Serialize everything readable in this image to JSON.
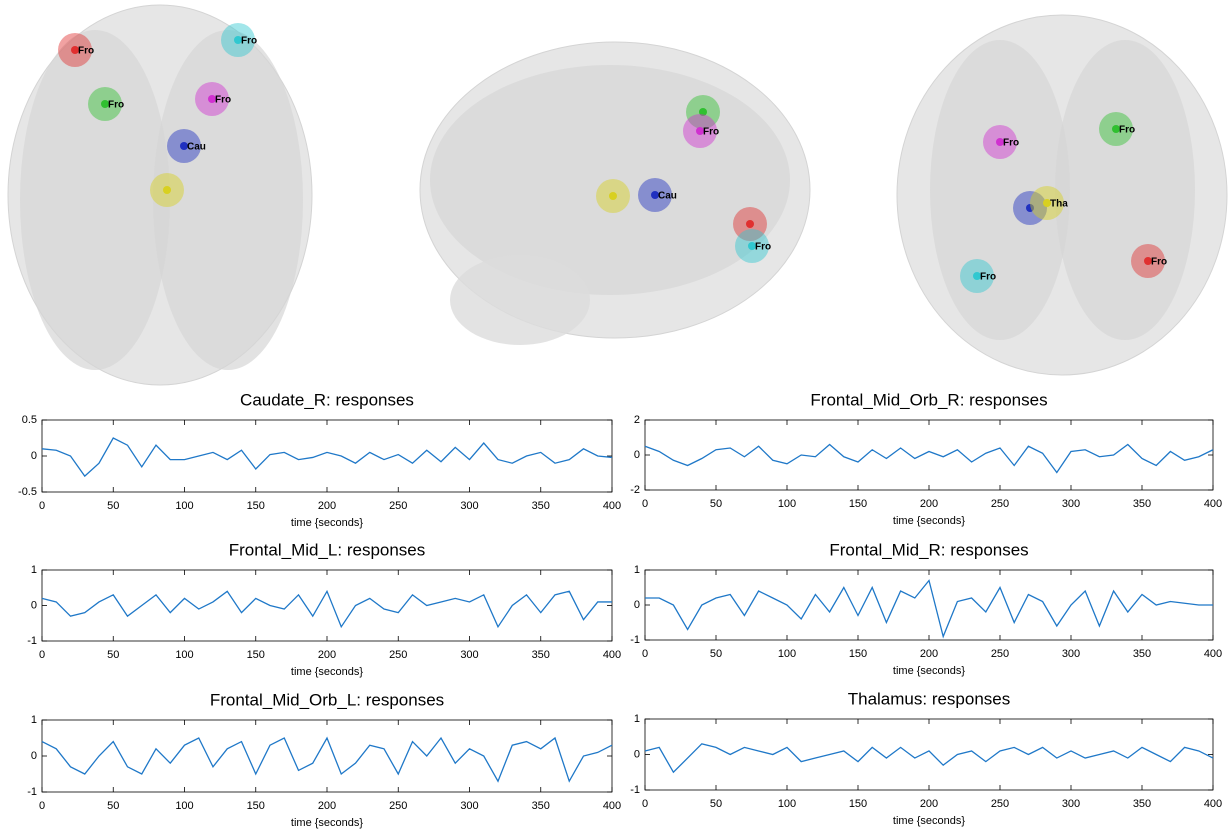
{
  "brain_views": [
    {
      "nodes": [
        {
          "label": "Fro",
          "color": "#e03030"
        },
        {
          "label": "Fro",
          "color": "#30c8d0"
        },
        {
          "label": "Fro",
          "color": "#30c030"
        },
        {
          "label": "Fro",
          "color": "#d030d0"
        },
        {
          "label": "Cau",
          "color": "#2030c0"
        },
        {
          "color": "#d8d020"
        }
      ]
    },
    {
      "nodes": [
        {
          "color": "#30c030"
        },
        {
          "label": "Fro",
          "color": "#d030d0"
        },
        {
          "color": "#d8d020"
        },
        {
          "label": "Cau",
          "color": "#2030c0"
        },
        {
          "color": "#e03030"
        },
        {
          "label": "Fro",
          "color": "#30c8d0"
        }
      ]
    },
    {
      "nodes": [
        {
          "label": "Fro",
          "color": "#d030d0"
        },
        {
          "label": "Fro",
          "color": "#30c030"
        },
        {
          "color": "#2030c0"
        },
        {
          "label": "Tha",
          "color": "#d8d020"
        },
        {
          "label": "Fro",
          "color": "#30c8d0"
        },
        {
          "label": "Fro",
          "color": "#e03030"
        }
      ]
    }
  ],
  "chart_data": [
    {
      "type": "line",
      "title": "Caudate_R: responses",
      "x_label": "time {seconds}",
      "color": "#1f78c8",
      "x": [
        0,
        10,
        20,
        30,
        40,
        50,
        60,
        70,
        80,
        90,
        100,
        110,
        120,
        130,
        140,
        150,
        160,
        170,
        180,
        190,
        200,
        210,
        220,
        230,
        240,
        250,
        260,
        270,
        280,
        290,
        300,
        310,
        320,
        330,
        340,
        350,
        360,
        370,
        380,
        390,
        400
      ],
      "values": [
        0.1,
        0.08,
        0.0,
        -0.28,
        -0.1,
        0.25,
        0.15,
        -0.15,
        0.15,
        -0.05,
        -0.05,
        0.0,
        0.05,
        -0.05,
        0.08,
        -0.18,
        0.02,
        0.05,
        -0.05,
        -0.02,
        0.05,
        0.0,
        -0.1,
        0.05,
        -0.05,
        0.02,
        -0.1,
        0.08,
        -0.08,
        0.12,
        -0.05,
        0.18,
        -0.05,
        -0.1,
        0.0,
        0.05,
        -0.1,
        -0.05,
        0.1,
        0.0,
        -0.02
      ],
      "xlim": [
        0,
        400
      ],
      "xticks": [
        0,
        50,
        100,
        150,
        200,
        250,
        300,
        350,
        400
      ],
      "ylim": [
        -0.5,
        0.5
      ],
      "yticks": [
        -0.5,
        0,
        0.5
      ]
    },
    {
      "type": "line",
      "title": "Frontal_Mid_Orb_R: responses",
      "x_label": "time {seconds}",
      "color": "#1f78c8",
      "x": [
        0,
        10,
        20,
        30,
        40,
        50,
        60,
        70,
        80,
        90,
        100,
        110,
        120,
        130,
        140,
        150,
        160,
        170,
        180,
        190,
        200,
        210,
        220,
        230,
        240,
        250,
        260,
        270,
        280,
        290,
        300,
        310,
        320,
        330,
        340,
        350,
        360,
        370,
        380,
        390,
        400
      ],
      "values": [
        0.5,
        0.2,
        -0.3,
        -0.6,
        -0.2,
        0.3,
        0.4,
        -0.1,
        0.5,
        -0.3,
        -0.5,
        0.0,
        -0.1,
        0.6,
        -0.1,
        -0.4,
        0.3,
        -0.2,
        0.4,
        -0.2,
        0.2,
        -0.1,
        0.3,
        -0.4,
        0.1,
        0.4,
        -0.6,
        0.5,
        0.1,
        -1.0,
        0.2,
        0.3,
        -0.1,
        0.0,
        0.6,
        -0.2,
        -0.6,
        0.2,
        -0.3,
        -0.1,
        0.3
      ],
      "xlim": [
        0,
        400
      ],
      "xticks": [
        0,
        50,
        100,
        150,
        200,
        250,
        300,
        350,
        400
      ],
      "ylim": [
        -2,
        2
      ],
      "yticks": [
        -2,
        0,
        2
      ]
    },
    {
      "type": "line",
      "title": "Frontal_Mid_L: responses",
      "x_label": "time {seconds}",
      "color": "#1f78c8",
      "x": [
        0,
        10,
        20,
        30,
        40,
        50,
        60,
        70,
        80,
        90,
        100,
        110,
        120,
        130,
        140,
        150,
        160,
        170,
        180,
        190,
        200,
        210,
        220,
        230,
        240,
        250,
        260,
        270,
        280,
        290,
        300,
        310,
        320,
        330,
        340,
        350,
        360,
        370,
        380,
        390,
        400
      ],
      "values": [
        0.2,
        0.1,
        -0.3,
        -0.2,
        0.1,
        0.3,
        -0.3,
        0.0,
        0.3,
        -0.2,
        0.2,
        -0.1,
        0.1,
        0.4,
        -0.2,
        0.2,
        0.0,
        -0.1,
        0.3,
        -0.3,
        0.4,
        -0.6,
        0.0,
        0.2,
        -0.1,
        -0.2,
        0.3,
        0.0,
        0.1,
        0.2,
        0.1,
        0.3,
        -0.6,
        0.0,
        0.3,
        -0.2,
        0.3,
        0.4,
        -0.4,
        0.1,
        0.1
      ],
      "xlim": [
        0,
        400
      ],
      "xticks": [
        0,
        50,
        100,
        150,
        200,
        250,
        300,
        350,
        400
      ],
      "ylim": [
        -1,
        1
      ],
      "yticks": [
        -1,
        0,
        1
      ]
    },
    {
      "type": "line",
      "title": "Frontal_Mid_R: responses",
      "x_label": "time {seconds}",
      "color": "#1f78c8",
      "x": [
        0,
        10,
        20,
        30,
        40,
        50,
        60,
        70,
        80,
        90,
        100,
        110,
        120,
        130,
        140,
        150,
        160,
        170,
        180,
        190,
        200,
        210,
        220,
        230,
        240,
        250,
        260,
        270,
        280,
        290,
        300,
        310,
        320,
        330,
        340,
        350,
        360,
        370,
        380,
        390,
        400
      ],
      "values": [
        0.2,
        0.2,
        0.0,
        -0.7,
        0.0,
        0.2,
        0.3,
        -0.3,
        0.4,
        0.2,
        0.0,
        -0.4,
        0.3,
        -0.2,
        0.5,
        -0.3,
        0.5,
        -0.5,
        0.4,
        0.2,
        0.7,
        -0.9,
        0.1,
        0.2,
        -0.2,
        0.5,
        -0.5,
        0.3,
        0.1,
        -0.6,
        0.0,
        0.4,
        -0.6,
        0.4,
        -0.2,
        0.3,
        0.0,
        0.1,
        0.05,
        0.0,
        0.0
      ],
      "xlim": [
        0,
        400
      ],
      "xticks": [
        0,
        50,
        100,
        150,
        200,
        250,
        300,
        350,
        400
      ],
      "ylim": [
        -1,
        1
      ],
      "yticks": [
        -1,
        0,
        1
      ]
    },
    {
      "type": "line",
      "title": "Frontal_Mid_Orb_L: responses",
      "x_label": "time {seconds}",
      "color": "#1f78c8",
      "x": [
        0,
        10,
        20,
        30,
        40,
        50,
        60,
        70,
        80,
        90,
        100,
        110,
        120,
        130,
        140,
        150,
        160,
        170,
        180,
        190,
        200,
        210,
        220,
        230,
        240,
        250,
        260,
        270,
        280,
        290,
        300,
        310,
        320,
        330,
        340,
        350,
        360,
        370,
        380,
        390,
        400
      ],
      "values": [
        0.4,
        0.2,
        -0.3,
        -0.5,
        0.0,
        0.4,
        -0.3,
        -0.5,
        0.2,
        -0.2,
        0.3,
        0.5,
        -0.3,
        0.2,
        0.4,
        -0.5,
        0.3,
        0.5,
        -0.4,
        -0.2,
        0.5,
        -0.5,
        -0.2,
        0.3,
        0.2,
        -0.5,
        0.4,
        0.0,
        0.5,
        -0.2,
        0.2,
        0.0,
        -0.7,
        0.3,
        0.4,
        0.2,
        0.5,
        -0.7,
        0.0,
        0.1,
        0.3
      ],
      "xlim": [
        0,
        400
      ],
      "xticks": [
        0,
        50,
        100,
        150,
        200,
        250,
        300,
        350,
        400
      ],
      "ylim": [
        -1,
        1
      ],
      "yticks": [
        -1,
        0,
        1
      ]
    },
    {
      "type": "line",
      "title": "Thalamus: responses",
      "x_label": "time {seconds}",
      "color": "#1f78c8",
      "x": [
        0,
        10,
        20,
        30,
        40,
        50,
        60,
        70,
        80,
        90,
        100,
        110,
        120,
        130,
        140,
        150,
        160,
        170,
        180,
        190,
        200,
        210,
        220,
        230,
        240,
        250,
        260,
        270,
        280,
        290,
        300,
        310,
        320,
        330,
        340,
        350,
        360,
        370,
        380,
        390,
        400
      ],
      "values": [
        0.1,
        0.2,
        -0.5,
        -0.1,
        0.3,
        0.2,
        0.0,
        0.2,
        0.1,
        0.0,
        0.2,
        -0.2,
        -0.1,
        0.0,
        0.1,
        -0.2,
        0.2,
        -0.1,
        0.2,
        -0.1,
        0.1,
        -0.3,
        0.0,
        0.1,
        -0.2,
        0.1,
        0.2,
        0.0,
        0.2,
        -0.1,
        0.1,
        -0.1,
        0.0,
        0.1,
        -0.1,
        0.2,
        0.0,
        -0.2,
        0.2,
        0.1,
        -0.1
      ],
      "xlim": [
        0,
        400
      ],
      "xticks": [
        0,
        50,
        100,
        150,
        200,
        250,
        300,
        350,
        400
      ],
      "ylim": [
        -1,
        1
      ],
      "yticks": [
        -1,
        0,
        1
      ]
    }
  ]
}
